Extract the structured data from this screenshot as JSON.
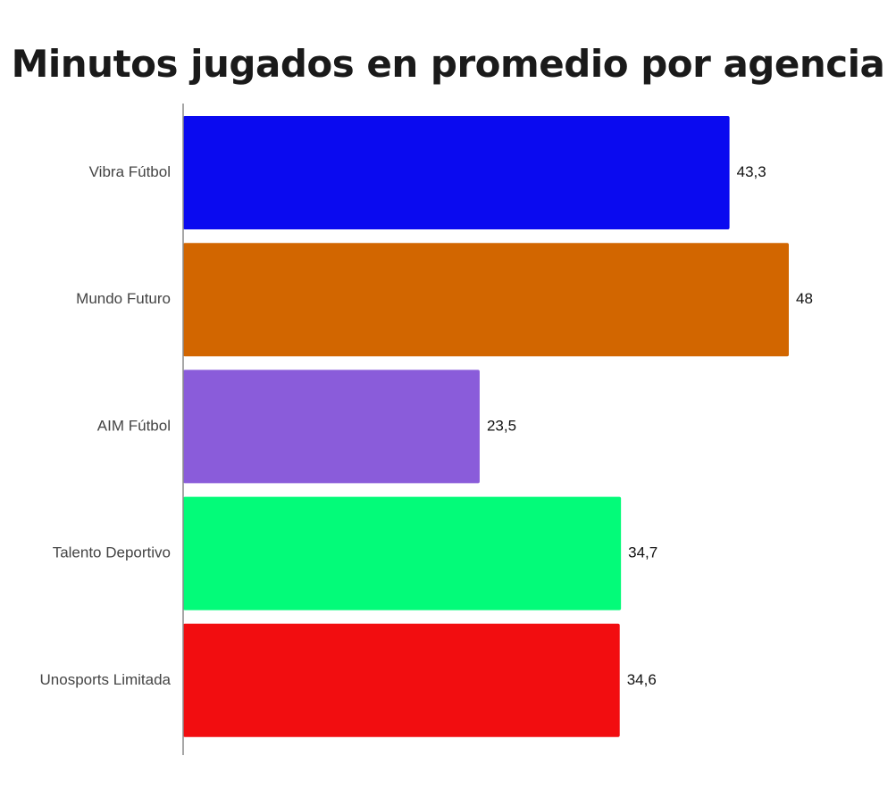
{
  "chart_data": {
    "type": "bar",
    "orientation": "horizontal",
    "title": "Minutos jugados en promedio por agencia",
    "xlabel": "",
    "ylabel": "",
    "xlim": [
      0,
      48
    ],
    "grid": false,
    "legend": "none",
    "categories": [
      "Vibra Fútbol",
      "Mundo Futuro",
      "AIM Fútbol",
      "Talento Deportivo",
      "Unosports Limitada"
    ],
    "values": [
      43.3,
      48,
      23.5,
      34.7,
      34.6
    ],
    "value_labels": [
      "43,3",
      "48",
      "23,5",
      "34,7",
      "34,6"
    ],
    "colors": [
      "#0A0AF0",
      "#D26600",
      "#8A5CDA",
      "#03FB79",
      "#F20D10"
    ],
    "axis_color": "#8a8a8a"
  }
}
